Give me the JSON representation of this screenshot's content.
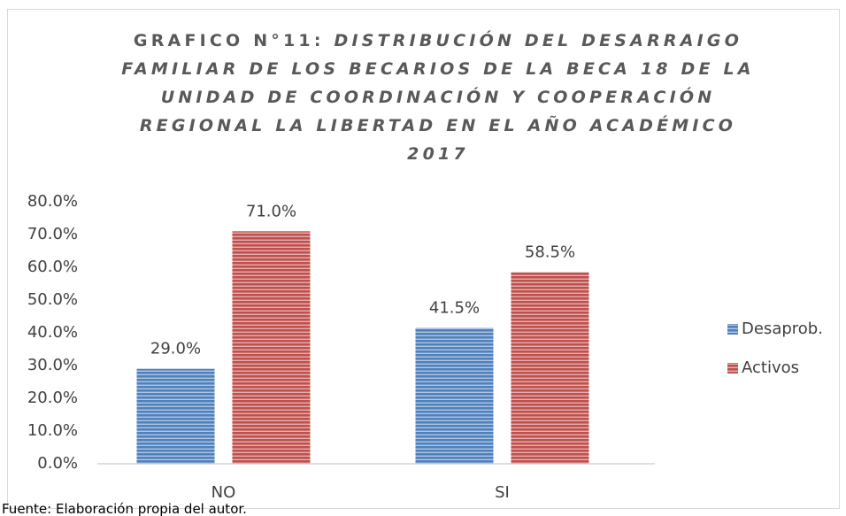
{
  "chart_data": {
    "type": "bar",
    "title": {
      "label": "GRAFICO N°11:",
      "text": "DISTRIBUCIÓN DEL DESARRAIGO FAMILIAR DE LOS BECARIOS DE LA BECA 18 DE LA UNIDAD DE COORDINACIÓN Y COOPERACIÓN REGIONAL LA LIBERTAD EN EL AÑO ACADÉMICO 2017"
    },
    "categories": [
      "NO",
      "SI"
    ],
    "series": [
      {
        "name": "Desaprob.",
        "color": "#4f81bd",
        "values": [
          29.0,
          41.5
        ],
        "value_labels": [
          "29.0%",
          "41.5%"
        ]
      },
      {
        "name": "Activos",
        "color": "#c0504d",
        "values": [
          71.0,
          58.5
        ],
        "value_labels": [
          "71.0%",
          "58.5%"
        ]
      }
    ],
    "ylim": [
      0,
      80
    ],
    "yticks": [
      {
        "value": 0,
        "label": "0.0%"
      },
      {
        "value": 10,
        "label": "10.0%"
      },
      {
        "value": 20,
        "label": "20.0%"
      },
      {
        "value": 30,
        "label": "30.0%"
      },
      {
        "value": 40,
        "label": "40.0%"
      },
      {
        "value": 50,
        "label": "50.0%"
      },
      {
        "value": 60,
        "label": "60.0%"
      },
      {
        "value": 70,
        "label": "70.0%"
      },
      {
        "value": 80,
        "label": "80.0%"
      }
    ],
    "grid": false,
    "legend": "right",
    "source": "Fuente: Elaboración propia del autor."
  }
}
